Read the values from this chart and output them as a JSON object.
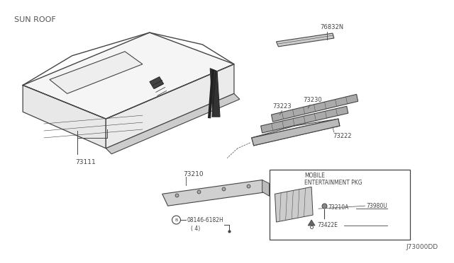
{
  "title": "SUN ROOF",
  "diagram_id": "J73000DD",
  "bg_color": "#ffffff",
  "line_color": "#444444",
  "dark_color": "#222222",
  "text_color": "#444444",
  "label_73111": "73111",
  "label_73210": "73210",
  "label_73223": "73223",
  "label_73230": "73230",
  "label_73222": "73222",
  "label_76832N": "76832N",
  "label_73980U": "73980U",
  "label_73210A": "73210A",
  "label_73422E": "73422E",
  "label_bolt": "08146-6182H",
  "label_bolt2": "( 4)",
  "box_label1": "MOBILE",
  "box_label2": "ENTERTAINMENT PKG"
}
